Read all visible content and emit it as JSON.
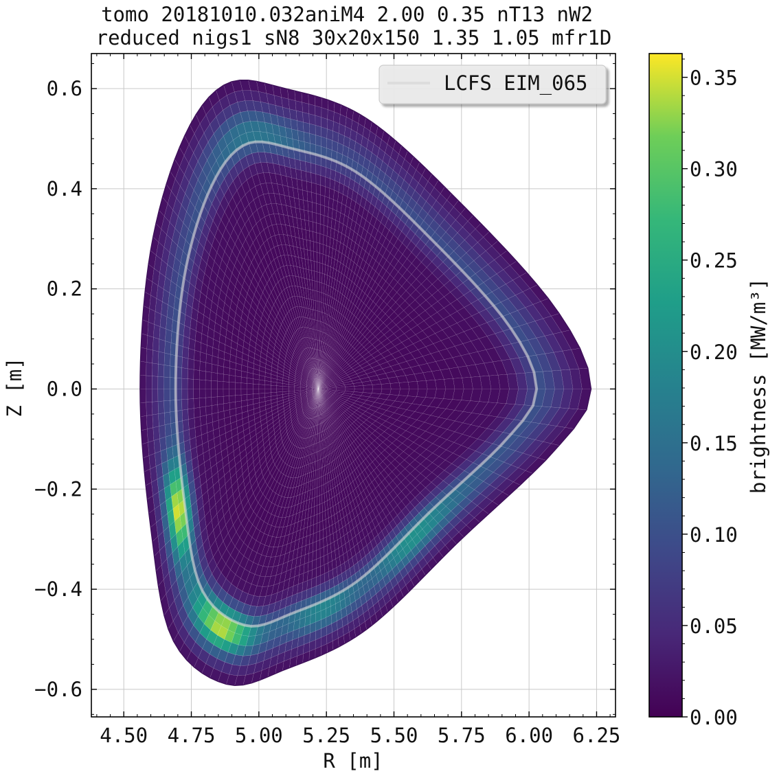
{
  "chart_data": {
    "type": "heatmap",
    "title": [
      "tomo 20181010.032aniM4 2.00 0.35 nT13 nW2",
      "reduced nigs1 sN8 30x20x150 1.35 1.05 mfr1D"
    ],
    "xlabel": "R [m]",
    "ylabel": "Z [m]",
    "xlim": [
      4.38,
      6.32
    ],
    "ylim": [
      -0.655,
      0.67
    ],
    "xticks": [
      4.5,
      4.75,
      5.0,
      5.25,
      5.5,
      5.75,
      6.0,
      6.25
    ],
    "xtick_labels": [
      "4.50",
      "4.75",
      "5.00",
      "5.25",
      "5.50",
      "5.75",
      "6.00",
      "6.25"
    ],
    "yticks": [
      0.6,
      0.4,
      0.2,
      0.0,
      -0.2,
      -0.4,
      -0.6
    ],
    "ytick_labels": [
      "0.6",
      "0.4",
      "0.2",
      "0.0",
      "−0.2",
      "−0.4",
      "−0.6"
    ],
    "grid": true,
    "legend": {
      "placement": "top-right",
      "entries": [
        {
          "label": "LCFS EIM_065",
          "color": "#d9d9d9"
        }
      ]
    },
    "colorbar": {
      "label": "brightness [MW/m³]",
      "colormap": "viridis",
      "range": [
        0.0,
        0.363
      ],
      "ticks": [
        0.0,
        0.05,
        0.1,
        0.15,
        0.2,
        0.25,
        0.3,
        0.35
      ],
      "tick_labels": [
        "0.00",
        "0.05",
        "0.10",
        "0.15",
        "0.20",
        "0.25",
        "0.30",
        "0.35"
      ]
    },
    "geometry": {
      "axis_center": [
        5.22,
        0.0
      ],
      "outer_boundary_control_points": [
        [
          6.23,
          0.0
        ],
        [
          6.1,
          0.16
        ],
        [
          5.75,
          0.37
        ],
        [
          5.4,
          0.54
        ],
        [
          5.1,
          0.6
        ],
        [
          4.88,
          0.61
        ],
        [
          4.72,
          0.5
        ],
        [
          4.6,
          0.28
        ],
        [
          4.56,
          0.0
        ],
        [
          4.6,
          -0.28
        ],
        [
          4.68,
          -0.5
        ],
        [
          4.88,
          -0.59
        ],
        [
          5.1,
          -0.56
        ],
        [
          5.4,
          -0.48
        ],
        [
          5.75,
          -0.3
        ],
        [
          6.1,
          -0.12
        ]
      ],
      "lcfs_relative_radius": 0.8,
      "radial_cells": 30,
      "poloidal_cells": 150
    },
    "emission_profile": {
      "radial": [
        [
          0.0,
          0.008
        ],
        [
          0.5,
          0.01
        ],
        [
          0.7,
          0.016
        ],
        [
          0.77,
          0.06
        ],
        [
          0.81,
          0.1
        ],
        [
          0.86,
          0.08
        ],
        [
          0.92,
          0.045
        ],
        [
          1.0,
          0.012
        ]
      ],
      "poloidal_peaks": [
        {
          "angle_deg": 233,
          "width_deg": 11,
          "amplitude": 0.26
        },
        {
          "angle_deg": 205,
          "width_deg": 9,
          "amplitude": 0.27
        },
        {
          "angle_deg": 272,
          "width_deg": 18,
          "amplitude": 0.1
        },
        {
          "angle_deg": 320,
          "width_deg": 20,
          "amplitude": 0.12
        },
        {
          "angle_deg": 115,
          "width_deg": 18,
          "amplitude": 0.07
        }
      ]
    }
  }
}
